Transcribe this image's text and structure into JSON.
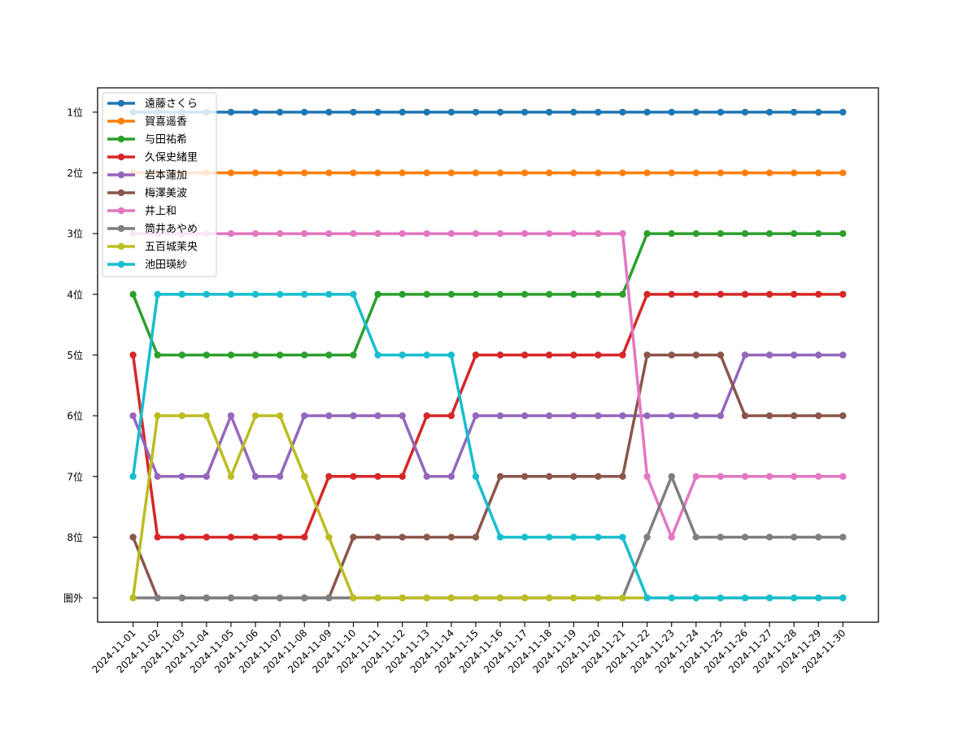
{
  "chart_data": {
    "type": "line",
    "title": "",
    "xlabel": "",
    "ylabel": "",
    "x": [
      "2024-11-01",
      "2024-11-02",
      "2024-11-03",
      "2024-11-04",
      "2024-11-05",
      "2024-11-06",
      "2024-11-07",
      "2024-11-08",
      "2024-11-09",
      "2024-11-10",
      "2024-11-11",
      "2024-11-12",
      "2024-11-13",
      "2024-11-14",
      "2024-11-15",
      "2024-11-16",
      "2024-11-17",
      "2024-11-18",
      "2024-11-19",
      "2024-11-20",
      "2024-11-21",
      "2024-11-22",
      "2024-11-23",
      "2024-11-24",
      "2024-11-25",
      "2024-11-26",
      "2024-11-27",
      "2024-11-28",
      "2024-11-29",
      "2024-11-30"
    ],
    "y_ticks": [
      "1位",
      "2位",
      "3位",
      "4位",
      "5位",
      "6位",
      "7位",
      "8位",
      "圏外"
    ],
    "y_inverted": true,
    "ylim": [
      1,
      9
    ],
    "out_of_rank_value": 9,
    "grid": false,
    "legend_position": "top-left",
    "series": [
      {
        "name": "遠藤さくら",
        "color": "#1f77b4",
        "values": [
          1,
          1,
          1,
          1,
          1,
          1,
          1,
          1,
          1,
          1,
          1,
          1,
          1,
          1,
          1,
          1,
          1,
          1,
          1,
          1,
          1,
          1,
          1,
          1,
          1,
          1,
          1,
          1,
          1,
          1
        ]
      },
      {
        "name": "賀喜遥香",
        "color": "#ff7f0e",
        "values": [
          2,
          2,
          2,
          2,
          2,
          2,
          2,
          2,
          2,
          2,
          2,
          2,
          2,
          2,
          2,
          2,
          2,
          2,
          2,
          2,
          2,
          2,
          2,
          2,
          2,
          2,
          2,
          2,
          2,
          2
        ]
      },
      {
        "name": "与田祐希",
        "color": "#2ca02c",
        "values": [
          4,
          5,
          5,
          5,
          5,
          5,
          5,
          5,
          5,
          5,
          4,
          4,
          4,
          4,
          4,
          4,
          4,
          4,
          4,
          4,
          4,
          3,
          3,
          3,
          3,
          3,
          3,
          3,
          3,
          3
        ]
      },
      {
        "name": "久保史緒里",
        "color": "#d62728",
        "values": [
          5,
          8,
          8,
          8,
          8,
          8,
          8,
          8,
          7,
          7,
          7,
          7,
          6,
          6,
          5,
          5,
          5,
          5,
          5,
          5,
          5,
          4,
          4,
          4,
          4,
          4,
          4,
          4,
          4,
          4
        ]
      },
      {
        "name": "岩本蓮加",
        "color": "#9467bd",
        "values": [
          6,
          7,
          7,
          7,
          6,
          7,
          7,
          6,
          6,
          6,
          6,
          6,
          7,
          7,
          6,
          6,
          6,
          6,
          6,
          6,
          6,
          6,
          6,
          6,
          6,
          5,
          5,
          5,
          5,
          5
        ]
      },
      {
        "name": "梅澤美波",
        "color": "#8c564b",
        "values": [
          8,
          9,
          9,
          9,
          9,
          9,
          9,
          9,
          9,
          8,
          8,
          8,
          8,
          8,
          8,
          7,
          7,
          7,
          7,
          7,
          7,
          5,
          5,
          5,
          5,
          6,
          6,
          6,
          6,
          6
        ]
      },
      {
        "name": "井上和",
        "color": "#e377c2",
        "values": [
          3,
          3,
          3,
          3,
          3,
          3,
          3,
          3,
          3,
          3,
          3,
          3,
          3,
          3,
          3,
          3,
          3,
          3,
          3,
          3,
          3,
          7,
          8,
          7,
          7,
          7,
          7,
          7,
          7,
          7
        ]
      },
      {
        "name": "筒井あやめ",
        "color": "#7f7f7f",
        "values": [
          9,
          9,
          9,
          9,
          9,
          9,
          9,
          9,
          9,
          9,
          9,
          9,
          9,
          9,
          9,
          9,
          9,
          9,
          9,
          9,
          9,
          8,
          7,
          8,
          8,
          8,
          8,
          8,
          8,
          8
        ]
      },
      {
        "name": "五百城茉央",
        "color": "#bcbd22",
        "values": [
          9,
          6,
          6,
          6,
          7,
          6,
          6,
          7,
          8,
          9,
          9,
          9,
          9,
          9,
          9,
          9,
          9,
          9,
          9,
          9,
          9,
          9,
          9,
          9,
          9,
          9,
          9,
          9,
          9,
          9
        ]
      },
      {
        "name": "池田瑛紗",
        "color": "#17becf",
        "values": [
          7,
          4,
          4,
          4,
          4,
          4,
          4,
          4,
          4,
          4,
          5,
          5,
          5,
          5,
          7,
          8,
          8,
          8,
          8,
          8,
          8,
          9,
          9,
          9,
          9,
          9,
          9,
          9,
          9,
          9
        ]
      }
    ]
  }
}
